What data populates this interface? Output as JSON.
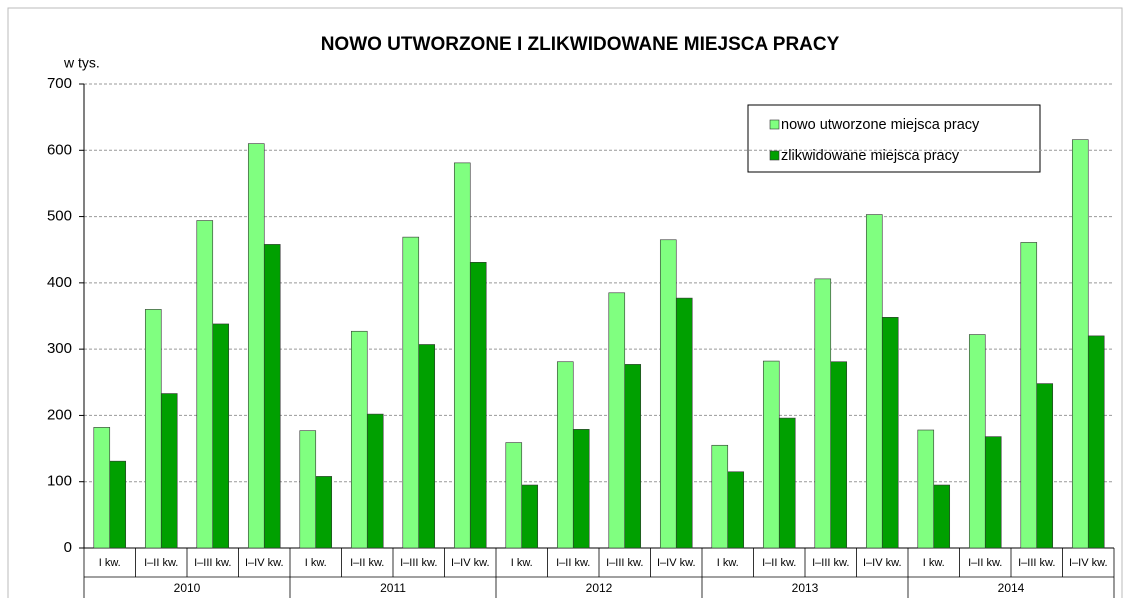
{
  "chart_data": {
    "type": "bar",
    "title": "NOWO UTWORZONE I ZLIKWIDOWANE MIEJSCA PRACY",
    "y_label": "w tys.",
    "categories": [
      "I kw.",
      "I–II kw.",
      "I–III kw.",
      "I–IV kw.",
      "I kw.",
      "I–II kw.",
      "I–III kw.",
      "I–IV kw.",
      "I kw.",
      "I–II kw.",
      "I–III kw.",
      "I–IV kw.",
      "I kw.",
      "I–II kw.",
      "I–III kw.",
      "I–IV kw.",
      "I kw.",
      "I–II kw.",
      "I–III kw.",
      "I–IV kw."
    ],
    "category_groups": [
      "2010",
      "2011",
      "2012",
      "2013",
      "2014"
    ],
    "series": [
      {
        "name": "nowo utworzone miejsca pracy",
        "color": "#80ff80",
        "values": [
          182,
          360,
          494,
          610,
          177,
          327,
          469,
          581,
          159,
          281,
          385,
          465,
          155,
          282,
          406,
          503,
          178,
          322,
          461,
          616
        ]
      },
      {
        "name": "zlikwidowane miejsca pracy",
        "color": "#00a000",
        "values": [
          131,
          233,
          338,
          458,
          108,
          202,
          307,
          431,
          95,
          179,
          277,
          377,
          115,
          196,
          281,
          348,
          95,
          168,
          248,
          320
        ]
      }
    ],
    "ylim": [
      0,
      700
    ],
    "yticks": [
      0,
      100,
      200,
      300,
      400,
      500,
      600,
      700
    ],
    "grid": true
  }
}
